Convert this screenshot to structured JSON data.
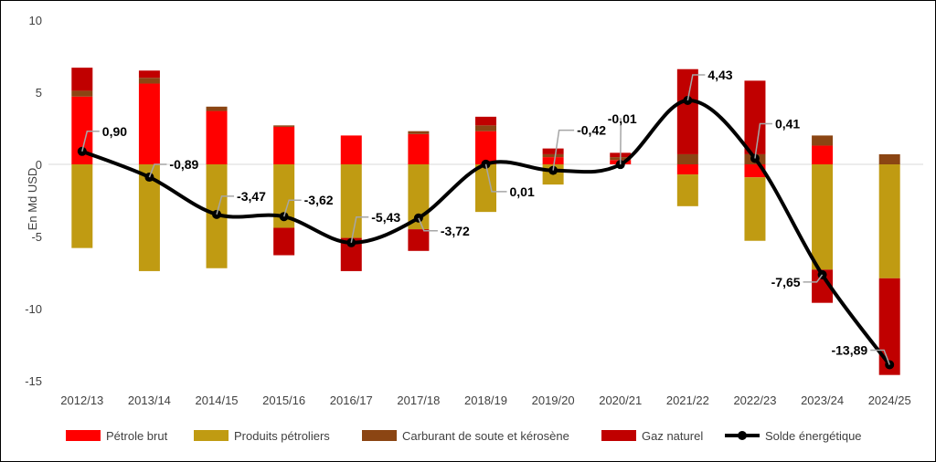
{
  "chart_data": {
    "type": "bar",
    "stacked": true,
    "ylabel": "En Md USD",
    "xlabel": "",
    "ylim": [
      -15,
      10
    ],
    "yticks": [
      10,
      5,
      0,
      -5,
      -10,
      -15
    ],
    "grid": false,
    "legend_position": "bottom",
    "categories": [
      "2012/13",
      "2013/14",
      "2014/15",
      "2015/16",
      "2016/17",
      "2017/18",
      "2018/19",
      "2019/20",
      "2020/21",
      "2021/22",
      "2022/23",
      "2023/24",
      "2024/25"
    ],
    "series": [
      {
        "name": "Pétrole brut",
        "color": "#ff0000",
        "values": [
          4.7,
          5.6,
          3.7,
          2.6,
          2.0,
          2.1,
          2.3,
          0.5,
          0.3,
          -0.7,
          -0.9,
          1.3,
          0.0
        ]
      },
      {
        "name": "Produits pétroliers",
        "color": "#c09b12",
        "values": [
          -5.8,
          -7.4,
          -7.2,
          -4.4,
          -5.1,
          -4.5,
          -3.3,
          -1.4,
          0.0,
          -2.2,
          -4.4,
          -7.3,
          -7.9
        ]
      },
      {
        "name": "Carburant de soute et kérosène",
        "color": "#8b4513",
        "values": [
          0.4,
          0.4,
          0.3,
          0.1,
          0.0,
          0.2,
          0.4,
          0.2,
          0.2,
          0.7,
          0.7,
          0.7,
          0.7
        ]
      },
      {
        "name": "Gaz naturel",
        "color": "#c00000",
        "values": [
          1.6,
          0.5,
          0.0,
          -1.9,
          -2.3,
          -1.5,
          0.6,
          0.4,
          0.3,
          5.9,
          5.1,
          -2.3,
          -6.7
        ]
      },
      {
        "name": "Solde énergétique",
        "type": "line",
        "color": "#000000",
        "values": [
          0.9,
          -0.89,
          -3.47,
          -3.62,
          -5.43,
          -3.72,
          0.01,
          -0.42,
          -0.01,
          4.43,
          0.41,
          -7.65,
          -13.89
        ]
      }
    ],
    "line_labels": [
      "0,90",
      "-0,89",
      "-3,47",
      "-3,62",
      "-5,43",
      "-3,72",
      "0,01",
      "-0,42",
      "-0,01",
      "4,43",
      "0,41",
      "-7,65",
      "-13,89"
    ]
  }
}
